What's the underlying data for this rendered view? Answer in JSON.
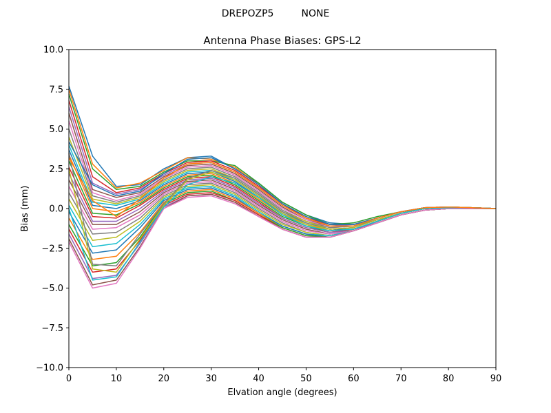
{
  "chart_data": {
    "type": "line",
    "suptitle": "DREPOZP5         NONE",
    "title": "Antenna Phase Biases: GPS-L2",
    "xlabel": "Elvation angle (degrees)",
    "ylabel": "Bias (mm)",
    "xlim": [
      0,
      90
    ],
    "ylim": [
      -10,
      10
    ],
    "xticks": [
      0,
      10,
      20,
      30,
      40,
      50,
      60,
      70,
      80,
      90
    ],
    "xtick_labels": [
      "0",
      "10",
      "20",
      "30",
      "40",
      "50",
      "60",
      "70",
      "80",
      "90"
    ],
    "yticks": [
      -10,
      -7.5,
      -5,
      -2.5,
      0,
      2.5,
      5,
      7.5,
      10
    ],
    "ytick_labels": [
      "−10.0",
      "−7.5",
      "−5.0",
      "−2.5",
      "0.0",
      "2.5",
      "5.0",
      "7.5",
      "10.0"
    ],
    "grid": false,
    "legend": "none",
    "colors": [
      "#1f77b4",
      "#ff7f0e",
      "#2ca02c",
      "#d62728",
      "#9467bd",
      "#8c564b",
      "#e377c2",
      "#7f7f7f",
      "#bcbd22",
      "#17becf"
    ],
    "x": [
      0,
      5,
      10,
      15,
      20,
      25,
      30,
      35,
      40,
      45,
      50,
      55,
      60,
      65,
      70,
      75,
      80,
      85,
      90
    ],
    "series": [
      {
        "values": [
          7.7,
          3.3,
          1.4,
          1.5,
          2.5,
          3.2,
          3.3,
          2.5,
          1.6,
          0.4,
          -0.4,
          -0.9,
          -1.0,
          -0.6,
          -0.2,
          0.05,
          0.1,
          0.05,
          0.0
        ]
      },
      {
        "values": [
          7.5,
          2.8,
          1.3,
          1.6,
          2.4,
          3.2,
          3.1,
          2.6,
          1.5,
          0.3,
          -0.5,
          -1.0,
          -1.0,
          -0.6,
          -0.2,
          0.05,
          0.1,
          0.05,
          0.0
        ]
      },
      {
        "values": [
          7.2,
          2.5,
          1.2,
          1.4,
          2.3,
          3.0,
          3.0,
          2.7,
          1.6,
          0.4,
          -0.4,
          -1.0,
          -0.9,
          -0.5,
          -0.2,
          0.05,
          0.1,
          0.05,
          0.0
        ]
      },
      {
        "values": [
          6.8,
          2.0,
          1.0,
          1.3,
          2.2,
          2.9,
          3.0,
          2.4,
          1.4,
          0.3,
          -0.6,
          -1.0,
          -1.0,
          -0.6,
          -0.2,
          0.05,
          0.1,
          0.05,
          0.0
        ]
      },
      {
        "values": [
          6.4,
          1.6,
          0.9,
          1.2,
          2.1,
          2.8,
          2.9,
          2.3,
          1.3,
          0.2,
          -0.6,
          -1.1,
          -1.0,
          -0.6,
          -0.2,
          0.05,
          0.1,
          0.05,
          0.0
        ]
      },
      {
        "values": [
          6.0,
          1.2,
          0.7,
          1.0,
          2.0,
          2.7,
          2.8,
          2.2,
          1.2,
          0.1,
          -0.7,
          -1.1,
          -1.1,
          -0.6,
          -0.2,
          0.05,
          0.1,
          0.05,
          0.0
        ]
      },
      {
        "values": [
          5.5,
          1.0,
          0.5,
          0.9,
          1.9,
          2.6,
          2.7,
          2.1,
          1.1,
          0.0,
          -0.7,
          -1.2,
          -1.1,
          -0.6,
          -0.2,
          0.05,
          0.1,
          0.05,
          0.0
        ]
      },
      {
        "values": [
          5.0,
          0.8,
          0.4,
          0.8,
          1.8,
          2.5,
          2.6,
          2.0,
          1.0,
          -0.1,
          -0.8,
          -1.2,
          -1.1,
          -0.7,
          -0.3,
          0.0,
          0.1,
          0.05,
          0.0
        ]
      },
      {
        "values": [
          4.5,
          0.6,
          0.3,
          0.7,
          1.7,
          2.4,
          2.5,
          1.9,
          0.9,
          -0.2,
          -0.8,
          -1.3,
          -1.2,
          -0.7,
          -0.3,
          0.0,
          0.1,
          0.05,
          0.0
        ]
      },
      {
        "values": [
          4.0,
          0.4,
          0.2,
          0.6,
          1.6,
          2.3,
          2.4,
          1.8,
          0.8,
          -0.3,
          -0.9,
          -1.3,
          -1.2,
          -0.7,
          -0.3,
          0.0,
          0.05,
          0.05,
          0.0
        ]
      },
      {
        "values": [
          3.7,
          0.2,
          0.0,
          0.5,
          1.5,
          2.2,
          2.3,
          1.7,
          0.7,
          -0.3,
          -1.0,
          -1.4,
          -1.2,
          -0.7,
          -0.3,
          0.0,
          0.05,
          0.05,
          0.0
        ]
      },
      {
        "values": [
          3.4,
          0.0,
          -0.2,
          0.4,
          1.4,
          2.1,
          2.2,
          1.6,
          0.6,
          -0.4,
          -1.0,
          -1.4,
          -1.3,
          -0.8,
          -0.3,
          0.0,
          0.05,
          0.05,
          0.0
        ]
      },
      {
        "values": [
          3.0,
          -0.3,
          -0.4,
          0.3,
          1.3,
          2.0,
          2.1,
          1.5,
          0.5,
          -0.5,
          -1.1,
          -1.5,
          -1.3,
          -0.8,
          -0.3,
          0.0,
          0.05,
          0.05,
          0.0
        ]
      },
      {
        "values": [
          2.6,
          -0.5,
          -0.6,
          0.2,
          1.2,
          1.9,
          2.0,
          1.4,
          0.4,
          -0.6,
          -1.2,
          -1.5,
          -1.3,
          -0.8,
          -0.3,
          0.0,
          0.05,
          0.05,
          0.0
        ]
      },
      {
        "values": [
          2.2,
          -0.8,
          -0.8,
          0.0,
          1.1,
          1.8,
          1.9,
          1.3,
          0.3,
          -0.6,
          -1.2,
          -1.5,
          -1.4,
          -0.8,
          -0.3,
          0.0,
          0.05,
          0.05,
          0.0
        ]
      },
      {
        "values": [
          1.8,
          -1.0,
          -1.0,
          -0.2,
          1.0,
          1.7,
          1.8,
          1.2,
          0.2,
          -0.7,
          -1.3,
          -1.6,
          -1.4,
          -0.9,
          -0.4,
          -0.1,
          0.0,
          0.05,
          0.0
        ]
      },
      {
        "values": [
          1.4,
          -1.3,
          -1.2,
          -0.4,
          0.9,
          1.6,
          1.7,
          1.1,
          0.1,
          -0.8,
          -1.4,
          -1.6,
          -1.4,
          -0.9,
          -0.4,
          -0.1,
          0.0,
          0.05,
          0.0
        ]
      },
      {
        "values": [
          1.0,
          -1.6,
          -1.5,
          -0.6,
          0.8,
          1.5,
          1.6,
          1.0,
          0.0,
          -0.9,
          -1.5,
          -1.7,
          -1.4,
          -0.9,
          -0.4,
          -0.1,
          0.0,
          0.05,
          0.0
        ]
      },
      {
        "values": [
          0.6,
          -2.0,
          -1.8,
          -0.8,
          0.7,
          1.4,
          1.5,
          0.9,
          -0.1,
          -1.0,
          -1.5,
          -1.7,
          -1.4,
          -0.9,
          -0.4,
          -0.1,
          0.0,
          0.05,
          0.0
        ]
      },
      {
        "values": [
          0.2,
          -2.4,
          -2.2,
          -1.0,
          0.6,
          1.3,
          1.4,
          0.8,
          -0.2,
          -1.1,
          -1.6,
          -1.7,
          -1.4,
          -0.9,
          -0.4,
          -0.1,
          0.0,
          0.05,
          0.0
        ]
      },
      {
        "values": [
          -0.2,
          -2.8,
          -2.6,
          -1.2,
          0.5,
          1.2,
          1.3,
          0.7,
          -0.3,
          -1.1,
          -1.6,
          -1.8,
          -1.4,
          -0.9,
          -0.4,
          -0.1,
          0.0,
          0.0,
          0.0
        ]
      },
      {
        "values": [
          -0.6,
          -3.2,
          -3.0,
          -1.5,
          0.4,
          1.1,
          1.2,
          0.6,
          -0.3,
          -1.2,
          -1.7,
          -1.8,
          -1.4,
          -0.9,
          -0.4,
          -0.1,
          0.0,
          0.0,
          0.0
        ]
      },
      {
        "values": [
          -1.0,
          -3.6,
          -3.4,
          -1.8,
          0.3,
          1.0,
          1.1,
          0.5,
          -0.4,
          -1.2,
          -1.7,
          -1.8,
          -1.4,
          -0.9,
          -0.4,
          -0.1,
          0.0,
          0.0,
          0.0
        ]
      },
      {
        "values": [
          -1.3,
          -4.0,
          -3.8,
          -2.0,
          0.2,
          0.9,
          1.0,
          0.5,
          -0.4,
          -1.3,
          -1.8,
          -1.8,
          -1.4,
          -0.9,
          -0.4,
          -0.1,
          0.0,
          0.0,
          0.0
        ]
      },
      {
        "values": [
          -1.6,
          -4.4,
          -4.2,
          -2.2,
          0.1,
          0.8,
          0.9,
          0.4,
          -0.5,
          -1.3,
          -1.8,
          -1.8,
          -1.4,
          -0.9,
          -0.4,
          -0.1,
          0.0,
          0.0,
          0.0
        ]
      },
      {
        "values": [
          -1.9,
          -4.8,
          -4.5,
          -2.4,
          0.0,
          0.8,
          0.9,
          0.4,
          -0.5,
          -1.3,
          -1.8,
          -1.8,
          -1.4,
          -0.9,
          -0.4,
          -0.1,
          0.0,
          0.0,
          0.0
        ]
      },
      {
        "values": [
          -2.1,
          -5.0,
          -4.7,
          -2.5,
          0.0,
          0.7,
          0.8,
          0.3,
          -0.5,
          -1.3,
          -1.8,
          -1.8,
          -1.4,
          -0.9,
          -0.4,
          -0.1,
          0.0,
          0.0,
          0.0
        ]
      },
      {
        "values": [
          3.5,
          -3.5,
          -3.6,
          -1.6,
          0.3,
          1.9,
          2.4,
          1.9,
          0.9,
          -0.2,
          -0.9,
          -1.3,
          -1.2,
          -0.7,
          -0.3,
          0.0,
          0.05,
          0.05,
          0.0
        ]
      },
      {
        "values": [
          2.5,
          -3.8,
          -4.0,
          -1.9,
          0.2,
          1.8,
          2.3,
          1.8,
          0.8,
          -0.3,
          -1.0,
          -1.3,
          -1.2,
          -0.7,
          -0.3,
          0.0,
          0.05,
          0.05,
          0.0
        ]
      },
      {
        "values": [
          0.0,
          -4.5,
          -4.3,
          -2.1,
          0.1,
          1.5,
          2.0,
          1.6,
          0.7,
          -0.4,
          -1.1,
          -1.4,
          -1.3,
          -0.8,
          -0.3,
          0.0,
          0.05,
          0.05,
          0.0
        ]
      },
      {
        "values": [
          4.2,
          1.5,
          0.8,
          1.1,
          2.2,
          3.1,
          3.2,
          2.5,
          1.5,
          0.3,
          -0.5,
          -1.0,
          -1.0,
          -0.6,
          -0.2,
          0.05,
          0.1,
          0.05,
          0.0
        ]
      },
      {
        "values": [
          3.2,
          0.5,
          -0.5,
          0.6,
          1.9,
          2.8,
          2.9,
          2.3,
          1.3,
          0.2,
          -0.6,
          -1.1,
          -1.1,
          -0.6,
          -0.2,
          0.05,
          0.1,
          0.05,
          0.0
        ]
      }
    ]
  }
}
